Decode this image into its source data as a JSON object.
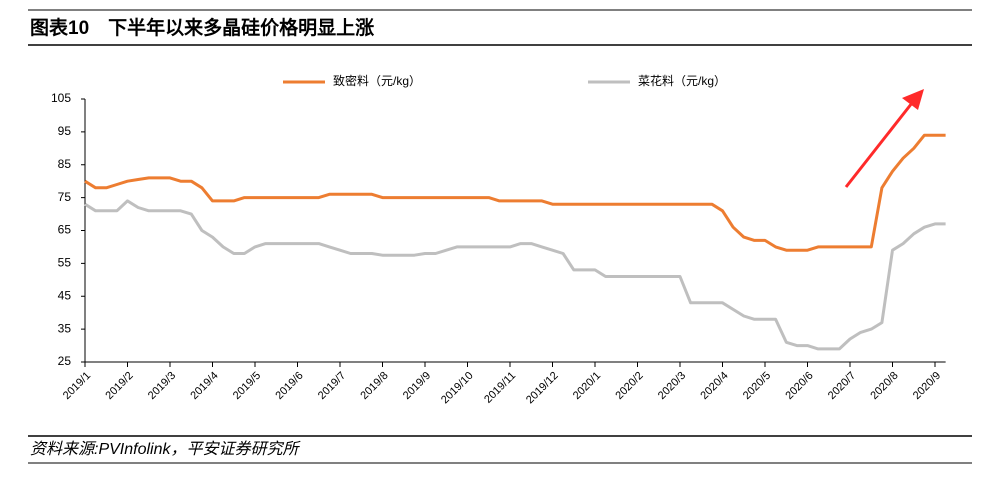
{
  "chart_data": {
    "type": "line",
    "title": "图表10　下半年以来多晶硅价格明显上涨",
    "source": "资料来源:PVInfolink，平安证券研究所",
    "categories": [
      "2019/1",
      null,
      null,
      null,
      "2019/2",
      null,
      null,
      null,
      "2019/3",
      null,
      null,
      null,
      "2019/4",
      null,
      null,
      null,
      "2019/5",
      null,
      null,
      null,
      "2019/6",
      null,
      null,
      null,
      "2019/7",
      null,
      null,
      null,
      "2019/8",
      null,
      null,
      null,
      "2019/9",
      null,
      null,
      null,
      "2019/10",
      null,
      null,
      null,
      "2019/11",
      null,
      null,
      null,
      "2019/12",
      null,
      null,
      null,
      "2020/1",
      null,
      null,
      null,
      "2020/2",
      null,
      null,
      null,
      "2020/3",
      null,
      null,
      null,
      "2020/4",
      null,
      null,
      null,
      "2020/5",
      null,
      null,
      null,
      "2020/6",
      null,
      null,
      null,
      "2020/7",
      null,
      null,
      null,
      "2020/8",
      null,
      null,
      null,
      "2020/9",
      null
    ],
    "series": [
      {
        "name": "致密料（元/kg）",
        "color": "#ed7d31",
        "values": [
          80,
          78,
          78,
          79,
          80,
          80.5,
          81,
          81,
          81,
          80,
          80,
          78,
          74,
          74,
          74,
          75,
          75,
          75,
          75,
          75,
          75,
          75,
          75,
          76,
          76,
          76,
          76,
          76,
          75,
          75,
          75,
          75,
          75,
          75,
          75,
          75,
          75,
          75,
          75,
          74,
          74,
          74,
          74,
          74,
          73,
          73,
          73,
          73,
          73,
          73,
          73,
          73,
          73,
          73,
          73,
          73,
          73,
          73,
          73,
          73,
          71,
          66,
          63,
          62,
          62,
          60,
          59,
          59,
          59,
          60,
          60,
          60,
          60,
          60,
          60,
          78,
          83,
          87,
          90,
          94,
          94,
          94
        ]
      },
      {
        "name": "菜花料（元/kg）",
        "color": "#bfbfbf",
        "values": [
          73,
          71,
          71,
          71,
          74,
          72,
          71,
          71,
          71,
          71,
          70,
          65,
          63,
          60,
          58,
          58,
          60,
          61,
          61,
          61,
          61,
          61,
          61,
          60,
          59,
          58,
          58,
          58,
          57.5,
          57.5,
          57.5,
          57.5,
          58,
          58,
          59,
          60,
          60,
          60,
          60,
          60,
          60,
          61,
          61,
          60,
          59,
          58,
          53,
          53,
          53,
          51,
          51,
          51,
          51,
          51,
          51,
          51,
          51,
          43,
          43,
          43,
          43,
          41,
          39,
          38,
          38,
          38,
          31,
          30,
          30,
          29,
          29,
          29,
          32,
          34,
          35,
          37,
          59,
          61,
          64,
          66,
          67,
          67
        ]
      }
    ],
    "ylim": [
      25,
      105
    ],
    "yticks": [
      25,
      35,
      45,
      55,
      65,
      75,
      85,
      95,
      105
    ]
  }
}
